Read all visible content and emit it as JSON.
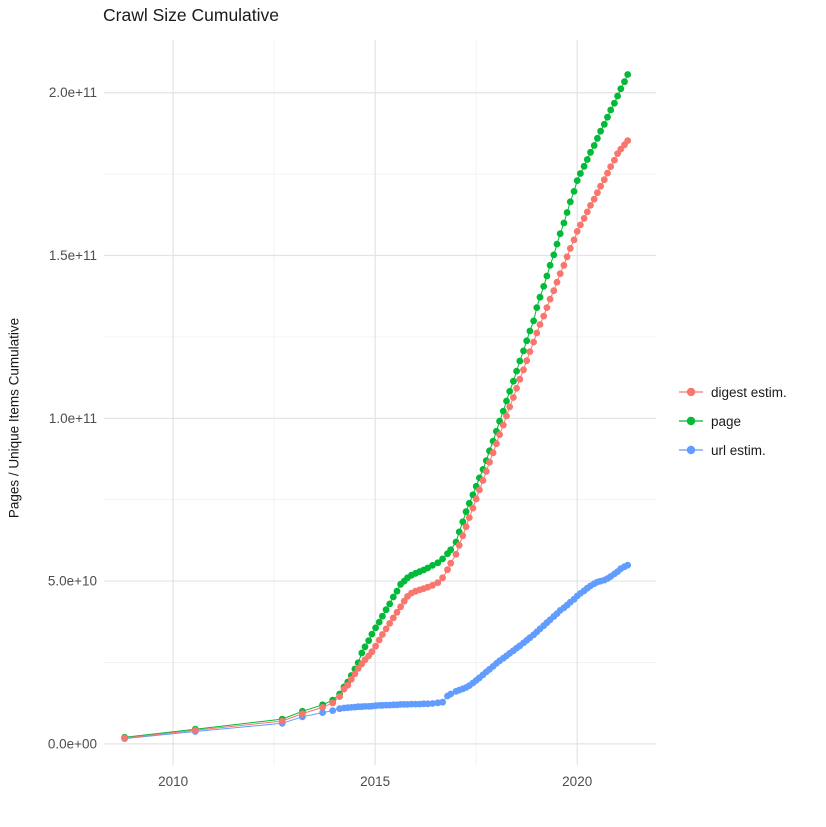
{
  "window": {
    "background": "#ffffff"
  },
  "chart_data": {
    "type": "scatter",
    "title": "Crawl Size Cumulative",
    "xlabel": "",
    "ylabel": "Pages / Unique Items Cumulative",
    "x_unit": "year (decimal)",
    "y_unit": "items, stored here in billions (1e9)",
    "xlim": [
      2008.29,
      2021.95
    ],
    "ylim_billions": [
      -6.5,
      216.2
    ],
    "x_ticks": [
      2010,
      2015,
      2020
    ],
    "x_tick_labels": [
      "2010",
      "2015",
      "2020"
    ],
    "x_minor_ticks": [
      2012.5,
      2017.5
    ],
    "y_ticks_billions": [
      0,
      50,
      100,
      150,
      200
    ],
    "y_tick_labels": [
      "0.0e+00",
      "5.0e+10",
      "1.0e+11",
      "1.5e+11",
      "2.0e+11"
    ],
    "y_minor_ticks_billions": [
      25,
      75,
      125,
      175
    ],
    "grid": "major+minor, light gray on white panel",
    "legend_position": "right",
    "point_radius_px": 3.4,
    "draw_order": [
      2,
      1,
      0
    ],
    "x": [
      2008.8,
      2010.55,
      2012.7,
      2013.2,
      2013.7,
      2013.95,
      2014.12,
      2014.23,
      2014.32,
      2014.41,
      2014.5,
      2014.58,
      2014.67,
      2014.75,
      2014.84,
      2014.92,
      2015.01,
      2015.1,
      2015.18,
      2015.27,
      2015.36,
      2015.45,
      2015.54,
      2015.63,
      2015.72,
      2015.8,
      2015.9,
      2016.0,
      2016.1,
      2016.2,
      2016.3,
      2016.42,
      2016.55,
      2016.67,
      2016.79,
      2016.87,
      2017.0,
      2017.08,
      2017.17,
      2017.25,
      2017.33,
      2017.42,
      2017.5,
      2017.58,
      2017.67,
      2017.75,
      2017.83,
      2017.92,
      2018.0,
      2018.08,
      2018.17,
      2018.25,
      2018.33,
      2018.42,
      2018.5,
      2018.58,
      2018.67,
      2018.75,
      2018.83,
      2018.92,
      2019.0,
      2019.08,
      2019.17,
      2019.25,
      2019.33,
      2019.42,
      2019.5,
      2019.58,
      2019.67,
      2019.75,
      2019.83,
      2019.92,
      2020.0,
      2020.08,
      2020.17,
      2020.25,
      2020.33,
      2020.42,
      2020.5,
      2020.58,
      2020.67,
      2020.75,
      2020.83,
      2020.92,
      2021.0,
      2021.08,
      2021.17,
      2021.25
    ],
    "series": [
      {
        "name": "digest estim.",
        "color": "#F8766D",
        "values_billions": [
          1.8,
          4.2,
          7.0,
          9.3,
          11.2,
          12.6,
          14.5,
          16.8,
          18.0,
          19.8,
          21.5,
          23.2,
          24.6,
          25.8,
          27.0,
          28.3,
          30.0,
          31.9,
          33.6,
          35.3,
          37.0,
          38.7,
          40.4,
          42.1,
          43.8,
          45.3,
          46.3,
          46.9,
          47.3,
          47.7,
          48.1,
          48.7,
          49.5,
          51.0,
          53.5,
          55.5,
          58.2,
          61.0,
          63.9,
          66.7,
          69.5,
          72.4,
          75.2,
          78.0,
          80.9,
          83.7,
          86.5,
          89.4,
          92.2,
          95.0,
          97.9,
          100.7,
          103.5,
          106.4,
          109.2,
          112.0,
          114.9,
          117.7,
          120.5,
          123.4,
          126.2,
          128.8,
          131.4,
          134.0,
          136.6,
          139.2,
          141.8,
          144.4,
          147.0,
          149.6,
          152.2,
          154.8,
          157.4,
          159.4,
          161.4,
          163.4,
          165.4,
          167.3,
          169.3,
          171.3,
          173.3,
          175.3,
          177.3,
          179.3,
          181.3,
          182.7,
          184.0,
          185.3
        ]
      },
      {
        "name": "page",
        "color": "#00BA38",
        "values_billions": [
          2.0,
          4.5,
          7.6,
          10.0,
          12.0,
          13.4,
          15.3,
          17.5,
          19.0,
          21.0,
          23.0,
          24.9,
          27.9,
          29.8,
          31.7,
          33.7,
          35.6,
          37.4,
          39.2,
          41.2,
          43.0,
          45.1,
          46.9,
          49.0,
          50.0,
          51.0,
          51.8,
          52.4,
          52.9,
          53.4,
          54.0,
          54.8,
          55.6,
          56.8,
          58.4,
          59.6,
          62.0,
          65.1,
          68.2,
          71.3,
          73.9,
          76.5,
          79.1,
          81.7,
          84.3,
          87.0,
          90.0,
          93.0,
          96.0,
          99.1,
          102.2,
          105.3,
          108.3,
          111.4,
          114.5,
          117.6,
          120.7,
          123.8,
          126.8,
          129.9,
          134.0,
          137.2,
          140.5,
          143.7,
          147.0,
          150.2,
          153.5,
          156.7,
          160.0,
          163.2,
          166.5,
          169.7,
          173.0,
          175.2,
          177.4,
          179.5,
          181.7,
          183.8,
          186.0,
          188.2,
          190.3,
          192.5,
          194.7,
          196.8,
          199.0,
          201.2,
          203.4,
          205.6
        ]
      },
      {
        "name": "url estim.",
        "color": "#619CFF",
        "values_billions": [
          1.6,
          3.8,
          6.3,
          8.3,
          9.6,
          10.2,
          10.8,
          11.0,
          11.1,
          11.2,
          11.3,
          11.4,
          11.4,
          11.5,
          11.5,
          11.6,
          11.7,
          11.8,
          11.8,
          11.9,
          11.9,
          12.0,
          12.0,
          12.1,
          12.1,
          12.1,
          12.2,
          12.2,
          12.2,
          12.3,
          12.3,
          12.4,
          12.6,
          12.8,
          14.7,
          15.3,
          16.1,
          16.5,
          16.9,
          17.3,
          17.9,
          18.7,
          19.5,
          20.3,
          21.2,
          22.1,
          22.9,
          23.8,
          24.7,
          25.5,
          26.3,
          27.0,
          27.8,
          28.6,
          29.4,
          30.1,
          31.0,
          31.8,
          32.6,
          33.5,
          34.4,
          35.3,
          36.3,
          37.2,
          38.1,
          39.1,
          40.0,
          41.0,
          41.8,
          42.6,
          43.5,
          44.4,
          45.4,
          46.2,
          47.0,
          47.8,
          48.5,
          49.2,
          49.7,
          50.0,
          50.3,
          50.8,
          51.4,
          52.2,
          52.9,
          53.8,
          54.4,
          54.9
        ]
      }
    ]
  },
  "legend": {
    "items": [
      {
        "label": "digest estim.",
        "color": "#F8766D"
      },
      {
        "label": "page",
        "color": "#00BA38"
      },
      {
        "label": "url estim.",
        "color": "#619CFF"
      }
    ]
  },
  "style_colors": {
    "grid_major": "#e3e3e3",
    "grid_minor": "#f0f0f0",
    "tick_label": "#4d4d4d",
    "text": "#1a1a1a"
  }
}
